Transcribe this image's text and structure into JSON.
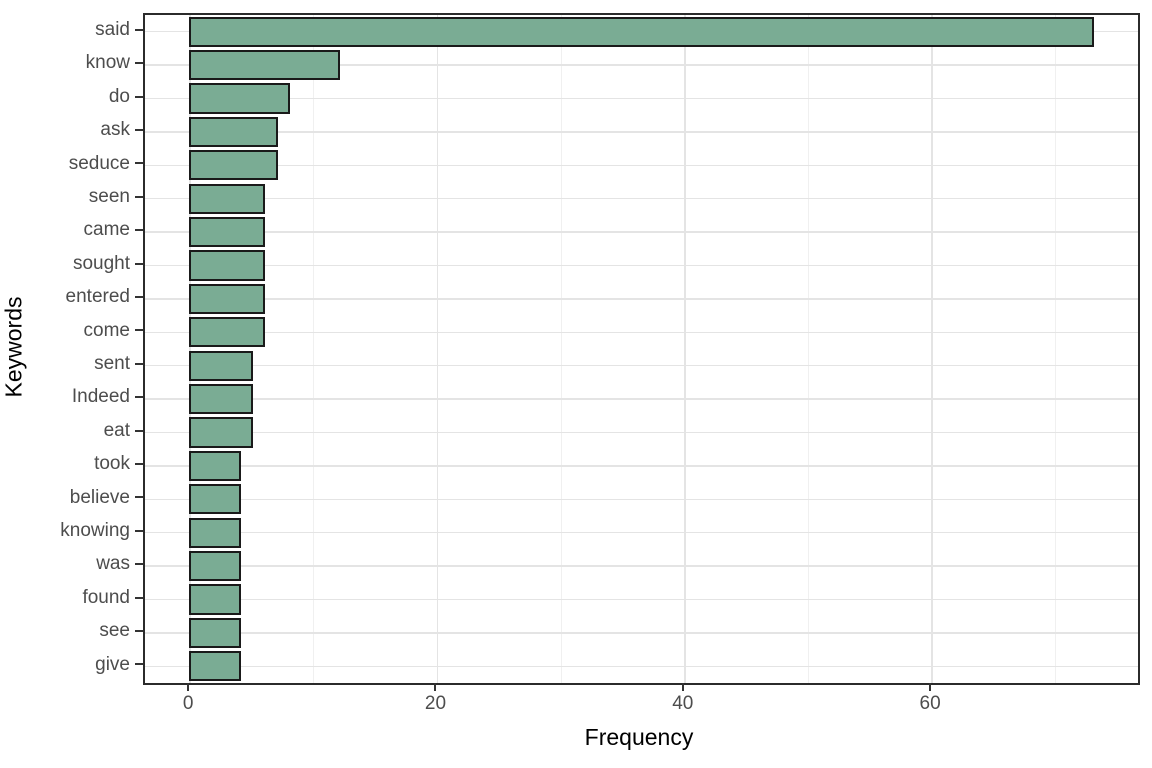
{
  "chart_data": {
    "type": "bar",
    "orientation": "horizontal",
    "title": "",
    "xlabel": "Frequency",
    "ylabel": "Keywords",
    "categories": [
      "said",
      "know",
      "do",
      "ask",
      "seduce",
      "seen",
      "came",
      "sought",
      "entered",
      "come",
      "sent",
      "Indeed",
      "eat",
      "took",
      "believe",
      "knowing",
      "was",
      "found",
      "see",
      "give"
    ],
    "values": [
      73,
      12,
      8,
      7,
      7,
      6,
      6,
      6,
      6,
      6,
      5,
      5,
      5,
      4,
      4,
      4,
      4,
      4,
      4,
      4
    ],
    "xlim": [
      -3.65,
      76.65
    ],
    "x_ticks": [
      0,
      20,
      40,
      60
    ],
    "x_minor_ticks": [
      10,
      30,
      50,
      70
    ],
    "grid": true,
    "legend": "none",
    "colors": {
      "bar_fill": "#7aac94",
      "bar_stroke": "#1a1a1a",
      "panel_border": "#2b2b2b",
      "grid_major": "#e4e4e4",
      "grid_minor": "#f0f0f0",
      "tick_mark": "#333333",
      "tick_label": "#4d4d4d",
      "axis_title": "#000000"
    }
  }
}
